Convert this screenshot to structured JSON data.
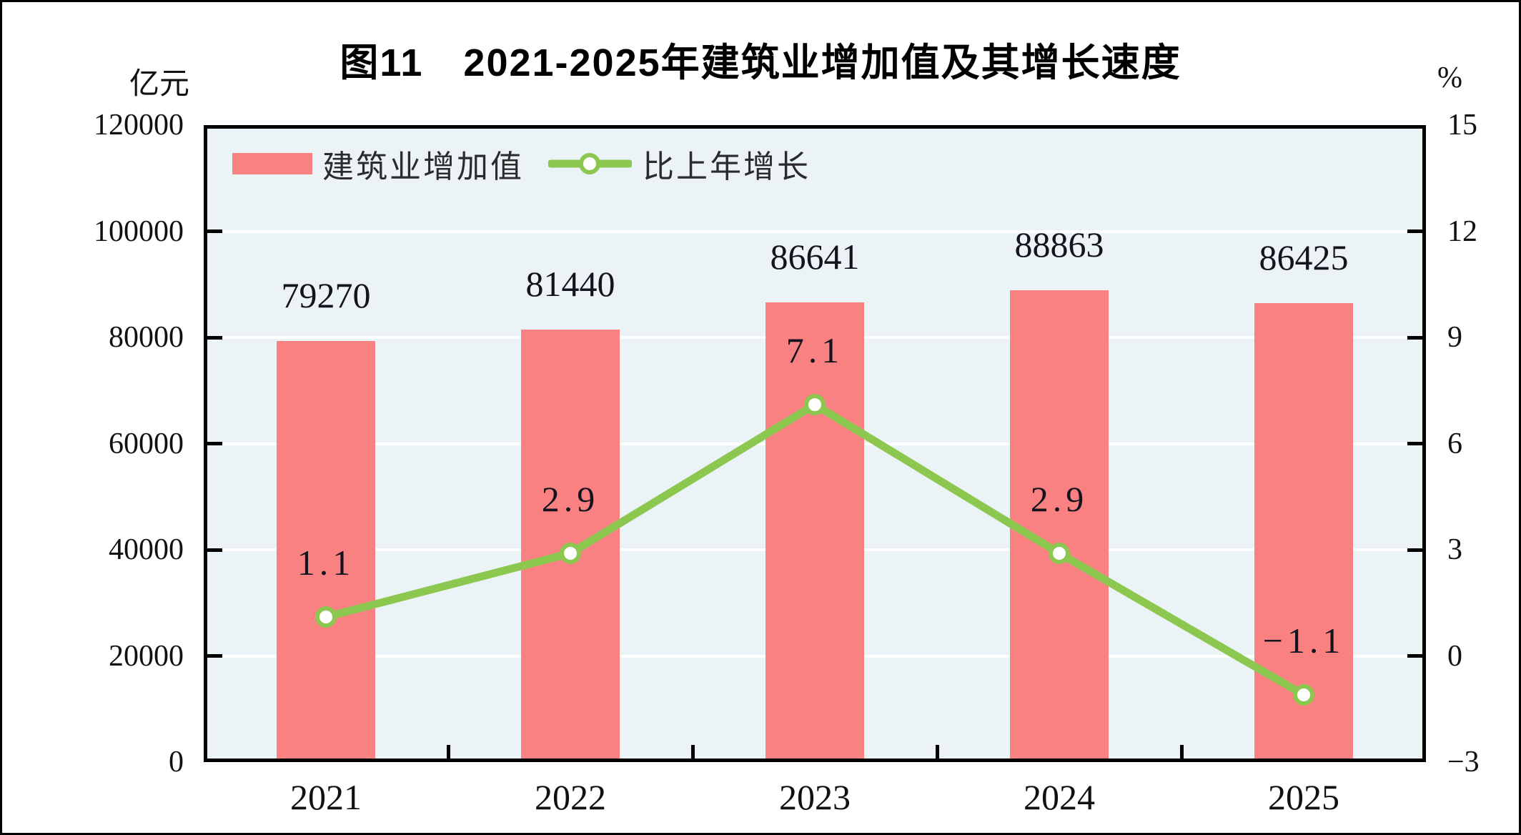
{
  "chart_data": {
    "type": "bar+line",
    "title": "图11　2021-2025年建筑业增加值及其增长速度",
    "categories": [
      "2021",
      "2022",
      "2023",
      "2024",
      "2025"
    ],
    "series": [
      {
        "name": "建筑业增加值",
        "type": "bar",
        "axis": "left",
        "values": [
          79270,
          81440,
          86641,
          88863,
          86425
        ],
        "labels": [
          "79270",
          "81440",
          "86641",
          "88863",
          "86425"
        ]
      },
      {
        "name": "比上年增长",
        "type": "line",
        "axis": "right",
        "values": [
          1.1,
          2.9,
          7.1,
          2.9,
          -1.1
        ],
        "labels": [
          "1.1",
          "2.9",
          "7.1",
          "2.9",
          "−1.1"
        ]
      }
    ],
    "left_axis": {
      "unit": "亿元",
      "min": 0,
      "max": 120000,
      "step": 20000,
      "tick_labels": [
        "120000",
        "100000",
        "80000",
        "60000",
        "40000",
        "20000",
        "0"
      ]
    },
    "right_axis": {
      "unit": "%",
      "min": -3,
      "max": 15,
      "step": 3,
      "tick_labels": [
        "15",
        "12",
        "9",
        "6",
        "3",
        "0",
        "−3"
      ]
    },
    "grid": true,
    "legend_position": "top-left-inside",
    "colors": {
      "bar": "#F98181",
      "line": "#8CC850",
      "marker_fill": "#FFFFFF",
      "plot_bg": "#ECF3F6",
      "gridline": "#FFFFFF",
      "frame": "#000000",
      "text": "#111111"
    }
  }
}
